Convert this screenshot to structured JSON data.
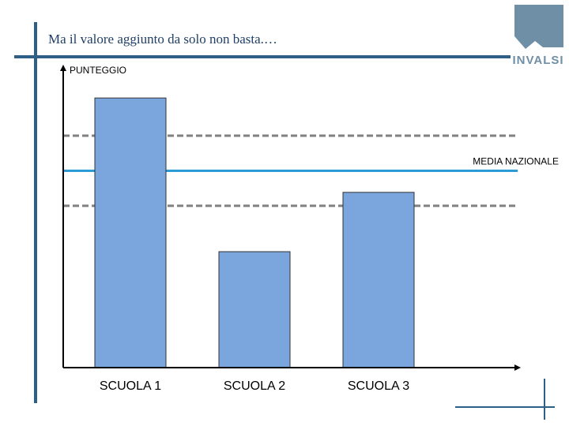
{
  "slide": {
    "title": "Ma il valore aggiunto da solo non basta.…",
    "logo_text": "INVALSI",
    "accent_color": "#2e5f85"
  },
  "chart_data": {
    "type": "bar",
    "categories": [
      "SCUOLA 1",
      "SCUOLA 2",
      "SCUOLA 3"
    ],
    "values": [
      100,
      43,
      65
    ],
    "ylabel": "PUNTEGGIO",
    "xlabel": "",
    "ylim": [
      0,
      110
    ],
    "grid": false,
    "reference_lines": [
      {
        "label": "MEDIA NAZIONALE",
        "value": 73,
        "style": "solid",
        "color": "#2a9bd5"
      },
      {
        "label": "",
        "value": 86,
        "style": "dashed",
        "color": "#808080"
      },
      {
        "label": "",
        "value": 60,
        "style": "dashed",
        "color": "#808080"
      }
    ],
    "bar_color": "#7aa5dd"
  }
}
